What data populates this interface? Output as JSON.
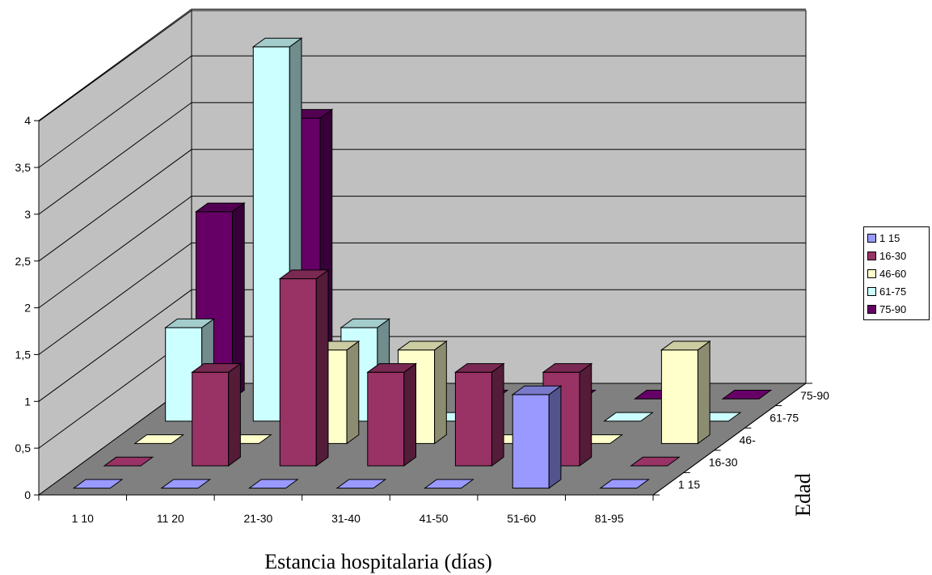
{
  "chart_data": {
    "type": "bar",
    "subtype": "3d-column",
    "xlabel": "Estancia hospitalaria (días)",
    "depth_label": "Edad",
    "categories": [
      "1 10",
      "11 20",
      "21-30",
      "31-40",
      "41-50",
      "51-60",
      "81-95"
    ],
    "depth_tick_labels": [
      "1 15",
      "16-30",
      "46-",
      "61-75",
      "75-90"
    ],
    "ylim": [
      0,
      4
    ],
    "y_ticks": [
      "0",
      "0,5",
      "1",
      "1,5",
      "2",
      "2,5",
      "3",
      "3,5",
      "4"
    ],
    "grid": true,
    "legend_position": "right",
    "series": [
      {
        "name": "1 15",
        "color": "#9999ff",
        "values": [
          0,
          0,
          0,
          0,
          0,
          1,
          0
        ]
      },
      {
        "name": "16-30",
        "color": "#993366",
        "values": [
          0,
          1,
          2,
          1,
          1,
          1,
          0
        ]
      },
      {
        "name": "46-60",
        "color": "#ffffcc",
        "values": [
          0,
          0,
          1,
          1,
          0,
          0,
          1
        ]
      },
      {
        "name": "61-75",
        "color": "#ccffff",
        "values": [
          1,
          4,
          1,
          0,
          0,
          0,
          0
        ]
      },
      {
        "name": "75-90",
        "color": "#660066",
        "values": [
          2,
          3,
          0,
          0,
          0,
          0,
          0
        ]
      }
    ]
  }
}
